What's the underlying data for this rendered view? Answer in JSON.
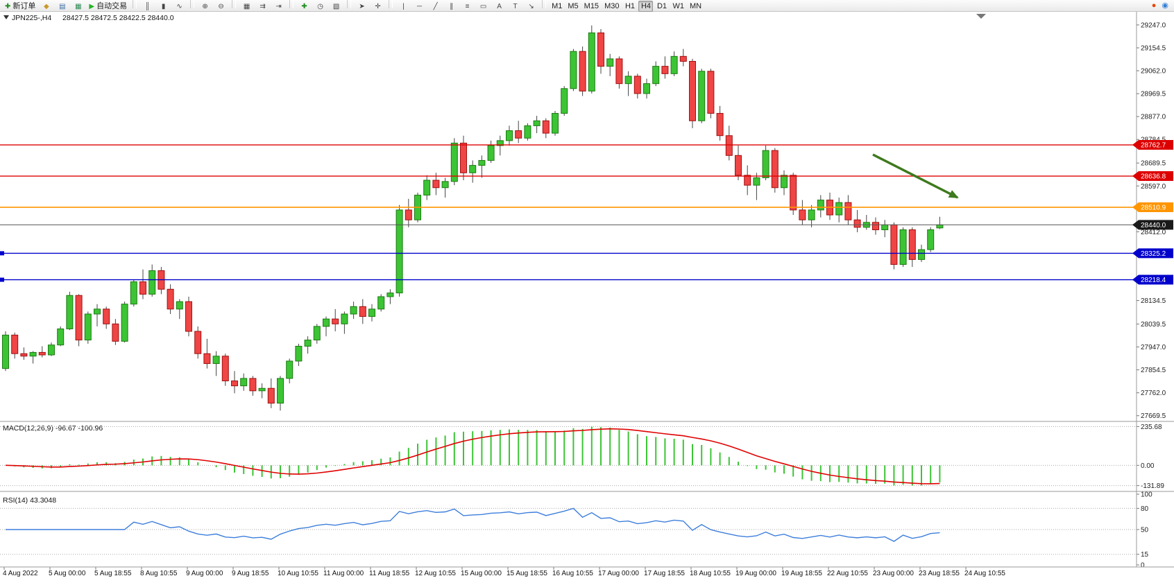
{
  "toolbar": {
    "groups": [
      {
        "items": [
          {
            "name": "new-order-button",
            "icon": "new-order-icon",
            "glyph": "✚",
            "color": "#1d8a1d",
            "label": "新订单"
          },
          {
            "name": "symbols-button",
            "icon": "symbols-icon",
            "glyph": "◆",
            "color": "#c8992a"
          },
          {
            "name": "market-watch-button",
            "icon": "market-watch-icon",
            "glyph": "▤",
            "color": "#3a6ea5"
          },
          {
            "name": "profiles-button",
            "icon": "profiles-icon",
            "glyph": "▦",
            "color": "#2e8b57"
          },
          {
            "name": "autotrading-button",
            "icon": "autotrading-play-icon",
            "glyph": "▶",
            "color": "#24b324",
            "label": "自动交易"
          }
        ]
      },
      {
        "items": [
          {
            "name": "bar-chart-button",
            "icon": "bar-chart-icon",
            "glyph": "║",
            "color": "#444444"
          },
          {
            "name": "candlestick-chart-button",
            "icon": "candlestick-icon",
            "glyph": "▮",
            "color": "#444444"
          },
          {
            "name": "line-chart-button",
            "icon": "line-chart-icon",
            "glyph": "∿",
            "color": "#444444"
          }
        ]
      },
      {
        "items": [
          {
            "name": "zoom-in-button",
            "icon": "zoom-in-icon",
            "glyph": "⊕",
            "color": "#444444"
          },
          {
            "name": "zoom-out-button",
            "icon": "zoom-out-icon",
            "glyph": "⊖",
            "color": "#444444"
          }
        ]
      },
      {
        "items": [
          {
            "name": "tile-windows-button",
            "icon": "tile-windows-icon",
            "glyph": "▦",
            "color": "#444444"
          },
          {
            "name": "auto-scroll-button",
            "icon": "auto-scroll-icon",
            "glyph": "⇉",
            "color": "#444444"
          },
          {
            "name": "chart-shift-button",
            "icon": "chart-shift-icon",
            "glyph": "⇥",
            "color": "#444444"
          }
        ]
      },
      {
        "items": [
          {
            "name": "indicators-button",
            "icon": "indicators-add-icon",
            "glyph": "✚",
            "color": "#1d8a1d"
          },
          {
            "name": "periods-button",
            "icon": "clock-icon",
            "glyph": "◷",
            "color": "#444444"
          },
          {
            "name": "templates-button",
            "icon": "templates-icon",
            "glyph": "▧",
            "color": "#444444"
          }
        ]
      },
      {
        "items": [
          {
            "name": "cursor-button",
            "icon": "cursor-icon",
            "glyph": "➤",
            "color": "#444444"
          },
          {
            "name": "crosshair-button",
            "icon": "crosshair-icon",
            "glyph": "✛",
            "color": "#444444"
          }
        ]
      },
      {
        "items": [
          {
            "name": "vertical-line-button",
            "icon": "vertical-line-icon",
            "glyph": "|",
            "color": "#444444"
          },
          {
            "name": "horizontal-line-button",
            "icon": "horizontal-line-icon",
            "glyph": "─",
            "color": "#444444"
          },
          {
            "name": "trendline-button",
            "icon": "trendline-icon",
            "glyph": "╱",
            "color": "#444444"
          },
          {
            "name": "channel-button",
            "icon": "channel-icon",
            "glyph": "∥",
            "color": "#444444"
          },
          {
            "name": "fibonacci-button",
            "icon": "fibonacci-icon",
            "glyph": "≡",
            "color": "#444444"
          },
          {
            "name": "shapes-button",
            "icon": "shapes-icon",
            "glyph": "▭",
            "color": "#444444"
          },
          {
            "name": "text-button",
            "icon": "text-icon",
            "glyph": "A",
            "color": "#444444"
          },
          {
            "name": "label-button",
            "icon": "label-icon",
            "glyph": "T",
            "color": "#444444"
          },
          {
            "name": "arrows-button",
            "icon": "arrow-objects-icon",
            "glyph": "↘",
            "color": "#444444"
          }
        ]
      },
      {
        "items": [
          {
            "name": "timeframe-m1-button",
            "label": "M1"
          },
          {
            "name": "timeframe-m5-button",
            "label": "M5"
          },
          {
            "name": "timeframe-m15-button",
            "label": "M15"
          },
          {
            "name": "timeframe-m30-button",
            "label": "M30"
          },
          {
            "name": "timeframe-h1-button",
            "label": "H1"
          },
          {
            "name": "timeframe-h4-button",
            "label": "H4",
            "active": true
          },
          {
            "name": "timeframe-d1-button",
            "label": "D1"
          },
          {
            "name": "timeframe-w1-button",
            "label": "W1"
          },
          {
            "name": "timeframe-mn-button",
            "label": "MN"
          }
        ]
      }
    ],
    "right": [
      {
        "name": "news-alert-icon",
        "glyph": "●",
        "color": "#e84400"
      },
      {
        "name": "community-icon",
        "glyph": "◉",
        "color": "#2f7ed8"
      }
    ]
  },
  "header": {
    "collapse_glyph": "▼",
    "symbol": "JPN225-,H4",
    "ohlc": "28427.5 28472.5 28422.5 28440.0"
  },
  "chart_data": {
    "type": "candlestick",
    "symbol": "JPN225-",
    "timeframe": "H4",
    "ylim": [
      27655,
      29300
    ],
    "y_ticks": [
      "29247.0",
      "29154.5",
      "29062.0",
      "28969.5",
      "28877.0",
      "28784.5",
      "28689.5",
      "28597.0",
      "28412.0",
      "28134.5",
      "28039.5",
      "27947.0",
      "27854.5",
      "27762.0",
      "27669.5"
    ],
    "x_labels": [
      "4 Aug 2022",
      "5 Aug 00:00",
      "5 Aug 18:55",
      "8 Aug 10:55",
      "9 Aug 00:00",
      "9 Aug 18:55",
      "10 Aug 10:55",
      "11 Aug 00:00",
      "11 Aug 18:55",
      "12 Aug 10:55",
      "15 Aug 00:00",
      "15 Aug 18:55",
      "16 Aug 10:55",
      "17 Aug 00:00",
      "17 Aug 18:55",
      "18 Aug 10:55",
      "19 Aug 00:00",
      "19 Aug 18:55",
      "22 Aug 10:55",
      "23 Aug 00:00",
      "23 Aug 18:55",
      "24 Aug 10:55"
    ],
    "colors": {
      "up": "#3cc435",
      "up_border": "#1d7a12",
      "down": "#ef4545",
      "down_border": "#a01010",
      "wick": "#444444"
    },
    "ohlc": [
      [
        27860,
        28010,
        27850,
        27995
      ],
      [
        27995,
        28005,
        27900,
        27920
      ],
      [
        27920,
        27945,
        27895,
        27910
      ],
      [
        27910,
        27930,
        27880,
        27925
      ],
      [
        27925,
        27950,
        27905,
        27915
      ],
      [
        27915,
        27965,
        27910,
        27955
      ],
      [
        27955,
        28030,
        27950,
        28020
      ],
      [
        28020,
        28170,
        28015,
        28155
      ],
      [
        28155,
        28160,
        27950,
        27975
      ],
      [
        27975,
        28090,
        27960,
        28080
      ],
      [
        28080,
        28120,
        28030,
        28100
      ],
      [
        28100,
        28110,
        28020,
        28040
      ],
      [
        28040,
        28060,
        27955,
        27970
      ],
      [
        27970,
        28130,
        27965,
        28120
      ],
      [
        28120,
        28220,
        28110,
        28210
      ],
      [
        28210,
        28260,
        28140,
        28160
      ],
      [
        28160,
        28280,
        28150,
        28255
      ],
      [
        28255,
        28270,
        28160,
        28180
      ],
      [
        28180,
        28200,
        28080,
        28100
      ],
      [
        28100,
        28140,
        28060,
        28130
      ],
      [
        28130,
        28150,
        27990,
        28010
      ],
      [
        28010,
        28030,
        27900,
        27920
      ],
      [
        27920,
        27980,
        27860,
        27880
      ],
      [
        27880,
        27930,
        27830,
        27910
      ],
      [
        27910,
        27920,
        27790,
        27810
      ],
      [
        27810,
        27850,
        27760,
        27790
      ],
      [
        27790,
        27840,
        27770,
        27820
      ],
      [
        27820,
        27830,
        27750,
        27770
      ],
      [
        27770,
        27800,
        27740,
        27780
      ],
      [
        27780,
        27820,
        27700,
        27720
      ],
      [
        27720,
        27830,
        27690,
        27820
      ],
      [
        27820,
        27900,
        27800,
        27890
      ],
      [
        27890,
        27960,
        27870,
        27950
      ],
      [
        27950,
        27990,
        27920,
        27975
      ],
      [
        27975,
        28040,
        27960,
        28030
      ],
      [
        28030,
        28070,
        27990,
        28060
      ],
      [
        28060,
        28100,
        28010,
        28040
      ],
      [
        28040,
        28090,
        28000,
        28080
      ],
      [
        28080,
        28130,
        28060,
        28110
      ],
      [
        28110,
        28140,
        28040,
        28070
      ],
      [
        28070,
        28120,
        28050,
        28100
      ],
      [
        28100,
        28160,
        28090,
        28150
      ],
      [
        28150,
        28180,
        28120,
        28165
      ],
      [
        28165,
        28520,
        28150,
        28500
      ],
      [
        28500,
        28545,
        28430,
        28460
      ],
      [
        28460,
        28570,
        28450,
        28560
      ],
      [
        28560,
        28640,
        28540,
        28620
      ],
      [
        28620,
        28650,
        28560,
        28590
      ],
      [
        28590,
        28630,
        28550,
        28615
      ],
      [
        28615,
        28790,
        28600,
        28770
      ],
      [
        28770,
        28800,
        28620,
        28650
      ],
      [
        28650,
        28700,
        28610,
        28680
      ],
      [
        28680,
        28720,
        28630,
        28700
      ],
      [
        28700,
        28780,
        28690,
        28760
      ],
      [
        28760,
        28800,
        28720,
        28780
      ],
      [
        28780,
        28840,
        28760,
        28820
      ],
      [
        28820,
        28860,
        28770,
        28790
      ],
      [
        28790,
        28850,
        28780,
        28840
      ],
      [
        28840,
        28880,
        28810,
        28860
      ],
      [
        28860,
        28870,
        28790,
        28810
      ],
      [
        28810,
        28900,
        28800,
        28890
      ],
      [
        28890,
        29000,
        28880,
        28990
      ],
      [
        28990,
        29150,
        28980,
        29140
      ],
      [
        29140,
        29160,
        28960,
        28980
      ],
      [
        28980,
        29245,
        28970,
        29215
      ],
      [
        29215,
        29230,
        29050,
        29080
      ],
      [
        29080,
        29130,
        29040,
        29110
      ],
      [
        29110,
        29120,
        28990,
        29010
      ],
      [
        29010,
        29060,
        28960,
        29040
      ],
      [
        29040,
        29050,
        28950,
        28970
      ],
      [
        28970,
        29030,
        28950,
        29010
      ],
      [
        29010,
        29100,
        29000,
        29080
      ],
      [
        29080,
        29120,
        29030,
        29050
      ],
      [
        29050,
        29140,
        29040,
        29120
      ],
      [
        29120,
        29150,
        29080,
        29100
      ],
      [
        29100,
        29110,
        28830,
        28860
      ],
      [
        28860,
        29070,
        28850,
        29060
      ],
      [
        29060,
        29070,
        28870,
        28890
      ],
      [
        28890,
        28920,
        28780,
        28800
      ],
      [
        28800,
        28840,
        28700,
        28720
      ],
      [
        28720,
        28760,
        28620,
        28640
      ],
      [
        28640,
        28680,
        28560,
        28600
      ],
      [
        28600,
        28650,
        28540,
        28630
      ],
      [
        28630,
        28760,
        28620,
        28740
      ],
      [
        28740,
        28750,
        28570,
        28590
      ],
      [
        28590,
        28660,
        28560,
        28640
      ],
      [
        28640,
        28650,
        28480,
        28500
      ],
      [
        28500,
        28540,
        28440,
        28460
      ],
      [
        28460,
        28520,
        28430,
        28500
      ],
      [
        28500,
        28560,
        28470,
        28540
      ],
      [
        28540,
        28570,
        28460,
        28480
      ],
      [
        28480,
        28550,
        28450,
        28530
      ],
      [
        28530,
        28560,
        28440,
        28460
      ],
      [
        28460,
        28500,
        28410,
        28430
      ],
      [
        28430,
        28480,
        28420,
        28450
      ],
      [
        28450,
        28470,
        28400,
        28420
      ],
      [
        28420,
        28460,
        28390,
        28440
      ],
      [
        28440,
        28450,
        28260,
        28280
      ],
      [
        28280,
        28430,
        28270,
        28420
      ],
      [
        28420,
        28430,
        28270,
        28300
      ],
      [
        28300,
        28360,
        28290,
        28340
      ],
      [
        28340,
        28430,
        28330,
        28420
      ],
      [
        28427.5,
        28472.5,
        28422.5,
        28440.0
      ]
    ],
    "h_lines": [
      {
        "price": 28762.7,
        "label": "28762.7",
        "color": "#dd0000",
        "tag": "#dd0000",
        "width": 1.4
      },
      {
        "price": 28636.8,
        "label": "28636.8",
        "color": "#dd0000",
        "tag": "#dd0000",
        "width": 1.4
      },
      {
        "price": 28510.9,
        "label": "28510.9",
        "color": "#ff9500",
        "tag": "#ff9500",
        "width": 1.6
      },
      {
        "price": 28440.0,
        "label": "28440.0",
        "color": "#555555",
        "tag": "#1a1a1a",
        "width": 1,
        "current": true
      },
      {
        "price": 28325.2,
        "label": "28325.2",
        "color": "#0000cc",
        "tag": "#0000cc",
        "width": 1.4,
        "edge_marker": true
      },
      {
        "price": 28218.4,
        "label": "28218.4",
        "color": "#0000cc",
        "tag": "#0000cc",
        "width": 1.4,
        "edge_marker": true
      }
    ],
    "indicators": [
      {
        "name": "MACD",
        "label": "MACD(12,26,9) -96.67 -100.96",
        "params": [
          12,
          26,
          9
        ],
        "axis_ticks": [
          "235.68",
          "0.00",
          "-131.89"
        ],
        "histogram_color": "#3cc435",
        "signal_color": "#e00000"
      },
      {
        "name": "RSI",
        "label": "RSI(14) 43.3048",
        "params": [
          14
        ],
        "levels": [
          80,
          50,
          15
        ],
        "axis_ticks": [
          "100",
          "80",
          "50",
          "15",
          "0"
        ],
        "line_color": "#3d7edb"
      }
    ],
    "annotation": {
      "type": "arrow",
      "color": "#3e7a1e",
      "from": [
        1258,
        206
      ],
      "to": [
        1380,
        268
      ]
    }
  }
}
